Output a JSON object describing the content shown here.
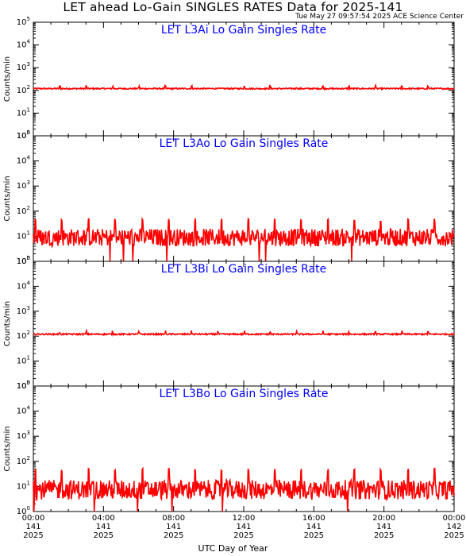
{
  "header": {
    "title": "LET ahead Lo-Gain SINGLES RATES Data for 2025-141",
    "timestamp": "Tue May 27 09:57:54 2025 ACE Science Center"
  },
  "x_axis_title": "UTC Day of Year",
  "chart_data": [
    {
      "type": "line",
      "title": "LET L3Ai Lo Gain Singles Rate",
      "ylabel": "Counts/min",
      "yscale": "log",
      "ylim": [
        1,
        100000
      ],
      "yticks": [
        1,
        10,
        100,
        1000,
        10000,
        100000
      ],
      "xlim_hours": [
        0,
        24
      ],
      "line_color": "#ff0000",
      "series": [
        {
          "baseline": 120,
          "spikes_at_hours": [
            1.5,
            3.0,
            4.5,
            6.0,
            7.5,
            9.0,
            10.5,
            12.0,
            13.5,
            15.0,
            16.5,
            18.0,
            19.5,
            21.0,
            22.5
          ],
          "spike_value": 145,
          "noise_range": [
            112,
            128
          ]
        }
      ]
    },
    {
      "type": "line",
      "title": "LET L3Ao Lo Gain Singles Rate",
      "ylabel": "Counts/min",
      "yscale": "log",
      "ylim": [
        1,
        100000
      ],
      "yticks": [
        1,
        10,
        100,
        1000,
        10000,
        100000
      ],
      "xlim_hours": [
        0,
        24
      ],
      "line_color": "#ff0000",
      "series": [
        {
          "baseline": 10,
          "spikes_at_hours": [
            0.1,
            1.6,
            3.15,
            4.65,
            6.2,
            7.7,
            9.2,
            10.7,
            12.25,
            13.75,
            15.25,
            16.8,
            18.3,
            19.8,
            21.35,
            22.85
          ],
          "spike_value": 45,
          "noise_range": [
            4,
            20
          ],
          "min_value": 1
        }
      ]
    },
    {
      "type": "line",
      "title": "LET L3Bi Lo Gain Singles Rate",
      "ylabel": "Counts/min",
      "yscale": "log",
      "ylim": [
        1,
        100000
      ],
      "yticks": [
        1,
        10,
        100,
        1000,
        10000,
        100000
      ],
      "xlim_hours": [
        0,
        24
      ],
      "line_color": "#ff0000",
      "series": [
        {
          "baseline": 120,
          "spikes_at_hours": [
            1.5,
            3.0,
            4.5,
            6.0,
            7.5,
            9.0,
            10.5,
            12.0,
            13.5,
            15.0,
            16.5,
            18.0,
            19.5,
            21.0,
            22.5
          ],
          "spike_value": 145,
          "noise_range": [
            112,
            128
          ]
        }
      ]
    },
    {
      "type": "line",
      "title": "LET L3Bo Lo Gain Singles Rate",
      "ylabel": "Counts/min",
      "yscale": "log",
      "ylim": [
        1,
        100000
      ],
      "yticks": [
        1,
        10,
        100,
        1000,
        10000,
        100000
      ],
      "xlim_hours": [
        0,
        24
      ],
      "line_color": "#ff0000",
      "series": [
        {
          "baseline": 8,
          "spikes_at_hours": [
            0.1,
            1.6,
            3.15,
            4.65,
            6.2,
            7.7,
            9.2,
            10.7,
            12.25,
            13.75,
            15.25,
            16.8,
            18.3,
            19.8,
            21.35,
            22.85
          ],
          "spike_value": 45,
          "noise_range": [
            3,
            18
          ],
          "min_value": 1
        }
      ]
    }
  ],
  "x_ticks": [
    {
      "hour": 0,
      "time": "00:00",
      "doy": "141",
      "year": "2025"
    },
    {
      "hour": 4,
      "time": "04:00",
      "doy": "141",
      "year": "2025"
    },
    {
      "hour": 8,
      "time": "08:00",
      "doy": "141",
      "year": "2025"
    },
    {
      "hour": 12,
      "time": "12:00",
      "doy": "141",
      "year": "2025"
    },
    {
      "hour": 16,
      "time": "16:00",
      "doy": "141",
      "year": "2025"
    },
    {
      "hour": 20,
      "time": "20:00",
      "doy": "141",
      "year": "2025"
    },
    {
      "hour": 24,
      "time": "00:00",
      "doy": "142",
      "year": "2025"
    }
  ],
  "colors": {
    "panel_title": "#0000ff",
    "data_line": "#ff0000",
    "axes": "#000000"
  }
}
